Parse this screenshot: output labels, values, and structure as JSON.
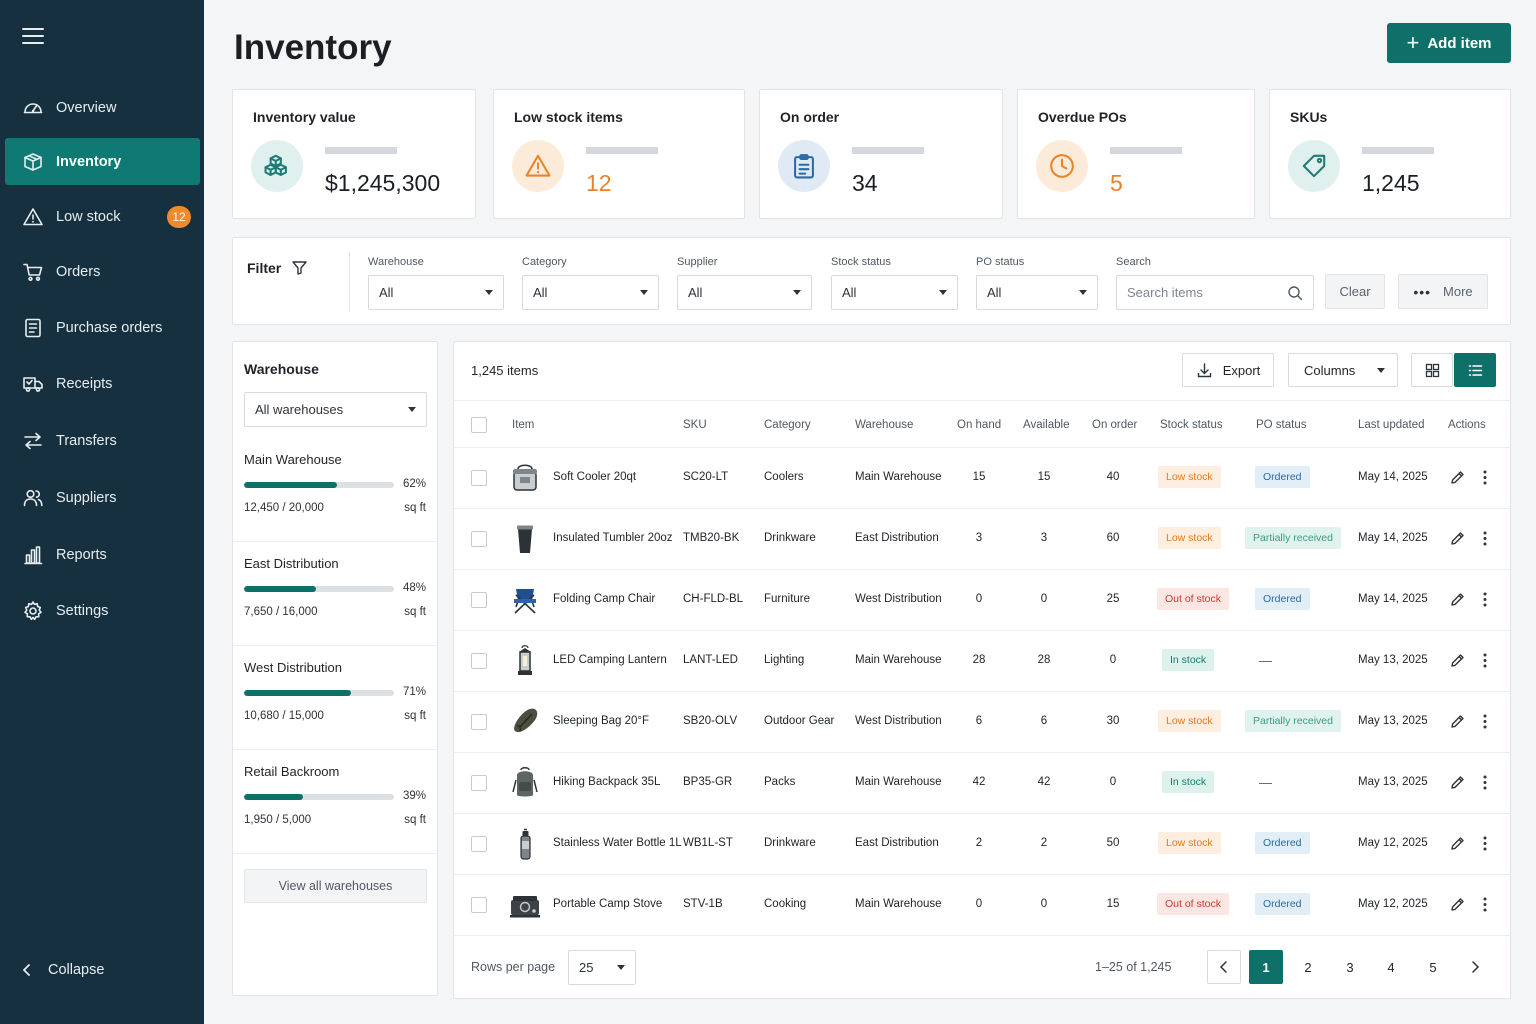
{
  "sidebar": {
    "items": [
      {
        "label": "Overview",
        "icon": "gauge-icon"
      },
      {
        "label": "Inventory",
        "icon": "box-icon",
        "active": true
      },
      {
        "label": "Low stock",
        "icon": "warning-icon",
        "badge": "12"
      },
      {
        "label": "Orders",
        "icon": "cart-icon"
      },
      {
        "label": "Purchase orders",
        "icon": "document-icon"
      },
      {
        "label": "Receipts",
        "icon": "truck-icon"
      },
      {
        "label": "Transfers",
        "icon": "transfer-icon"
      },
      {
        "label": "Suppliers",
        "icon": "users-icon"
      },
      {
        "label": "Reports",
        "icon": "bar-chart-icon"
      },
      {
        "label": "Settings",
        "icon": "gear-icon"
      }
    ],
    "collapse_label": "Collapse"
  },
  "header": {
    "title": "Inventory",
    "add_button": "Add item"
  },
  "kpis": [
    {
      "title": "Inventory value",
      "value": "$1,245,300",
      "icon": "cubes-icon",
      "color": "#1f7b74",
      "bg": "#dff0ee"
    },
    {
      "title": "Low stock items",
      "value": "12",
      "icon": "warning-icon",
      "color": "#e9832a",
      "bg": "#fdebd9"
    },
    {
      "title": "On order",
      "value": "34",
      "icon": "clipboard-icon",
      "color": "#2b6aa3",
      "bg": "#dfeaf5"
    },
    {
      "title": "Overdue POs",
      "value": "5",
      "icon": "clock-icon",
      "color": "#e9832a",
      "bg": "#fdebd9"
    },
    {
      "title": "SKUs",
      "value": "1,245",
      "icon": "tag-icon",
      "color": "#1f7b74",
      "bg": "#dff0ee"
    }
  ],
  "filters": {
    "label": "Filter",
    "warehouse": {
      "label": "Warehouse",
      "value": "All"
    },
    "category": {
      "label": "Category",
      "value": "All"
    },
    "supplier": {
      "label": "Supplier",
      "value": "All"
    },
    "stock_status": {
      "label": "Stock status",
      "value": "All"
    },
    "po_status": {
      "label": "PO status",
      "value": "All"
    },
    "search": {
      "label": "Search",
      "placeholder": "Search items"
    },
    "clear": "Clear",
    "more": "More"
  },
  "warehouse_panel": {
    "title": "Warehouse",
    "select_value": "All warehouses",
    "items": [
      {
        "name": "Main Warehouse",
        "pct": "62%",
        "fraction": 0.62,
        "capacity": "12,450 / 20,000",
        "unit": "sq ft"
      },
      {
        "name": "East Distribution",
        "pct": "48%",
        "fraction": 0.48,
        "capacity": "7,650 / 16,000",
        "unit": "sq ft"
      },
      {
        "name": "West Distribution",
        "pct": "71%",
        "fraction": 0.71,
        "capacity": "10,680 / 15,000",
        "unit": "sq ft"
      },
      {
        "name": "Retail Backroom",
        "pct": "39%",
        "fraction": 0.39,
        "capacity": "1,950 / 5,000",
        "unit": "sq ft"
      }
    ],
    "view_all": "View all warehouses"
  },
  "table": {
    "count": "1,245 items",
    "export": "Export",
    "columns": "Columns",
    "headers": [
      "Item",
      "SKU",
      "Category",
      "Warehouse",
      "On hand",
      "Available",
      "On order",
      "Stock status",
      "PO status",
      "Last updated",
      "Actions"
    ],
    "rows": [
      {
        "item": "Soft Cooler 20qt",
        "sku": "SC20-LT",
        "category": "Coolers",
        "warehouse": "Main Warehouse",
        "on_hand": "15",
        "available": "15",
        "on_order": "40",
        "stock": "Low stock",
        "stock_type": "low",
        "po": "Ordered",
        "po_type": "ordered",
        "updated": "May 14, 2025",
        "thumb": "cooler"
      },
      {
        "item": "Insulated Tumbler 20oz",
        "sku": "TMB20-BK",
        "category": "Drinkware",
        "warehouse": "East Distribution",
        "on_hand": "3",
        "available": "3",
        "on_order": "60",
        "stock": "Low stock",
        "stock_type": "low",
        "po": "Partially received",
        "po_type": "partial",
        "updated": "May 14, 2025",
        "thumb": "tumbler"
      },
      {
        "item": "Folding Camp Chair",
        "sku": "CH-FLD-BL",
        "category": "Furniture",
        "warehouse": "West Distribution",
        "on_hand": "0",
        "available": "0",
        "on_order": "25",
        "stock": "Out of stock",
        "stock_type": "out",
        "po": "Ordered",
        "po_type": "ordered",
        "updated": "May 14, 2025",
        "thumb": "chair"
      },
      {
        "item": "LED Camping Lantern",
        "sku": "LANT-LED",
        "category": "Lighting",
        "warehouse": "Main Warehouse",
        "on_hand": "28",
        "available": "28",
        "on_order": "0",
        "stock": "In stock",
        "stock_type": "in",
        "po": "—",
        "po_type": "none",
        "updated": "May 13, 2025",
        "thumb": "lantern"
      },
      {
        "item": "Sleeping Bag 20°F",
        "sku": "SB20-OLV",
        "category": "Outdoor Gear",
        "warehouse": "West Distribution",
        "on_hand": "6",
        "available": "6",
        "on_order": "30",
        "stock": "Low stock",
        "stock_type": "low",
        "po": "Partially received",
        "po_type": "partial",
        "updated": "May 13, 2025",
        "thumb": "bag"
      },
      {
        "item": "Hiking Backpack 35L",
        "sku": "BP35-GR",
        "category": "Packs",
        "warehouse": "Main Warehouse",
        "on_hand": "42",
        "available": "42",
        "on_order": "0",
        "stock": "In stock",
        "stock_type": "in",
        "po": "—",
        "po_type": "none",
        "updated": "May 13, 2025",
        "thumb": "backpack"
      },
      {
        "item": "Stainless Water Bottle 1L",
        "sku": "WB1L-ST",
        "category": "Drinkware",
        "warehouse": "East Distribution",
        "on_hand": "2",
        "available": "2",
        "on_order": "50",
        "stock": "Low stock",
        "stock_type": "low",
        "po": "Ordered",
        "po_type": "ordered",
        "updated": "May 12, 2025",
        "thumb": "bottle"
      },
      {
        "item": "Portable Camp Stove",
        "sku": "STV-1B",
        "category": "Cooking",
        "warehouse": "Main Warehouse",
        "on_hand": "0",
        "available": "0",
        "on_order": "15",
        "stock": "Out of stock",
        "stock_type": "out",
        "po": "Ordered",
        "po_type": "ordered",
        "updated": "May 12, 2025",
        "thumb": "stove"
      }
    ],
    "footer": {
      "rows_per_page_label": "Rows per page",
      "rows_per_page": "25",
      "range": "1–25 of 1,245",
      "pages": [
        "1",
        "2",
        "3",
        "4",
        "5"
      ],
      "current_page": "1"
    }
  }
}
